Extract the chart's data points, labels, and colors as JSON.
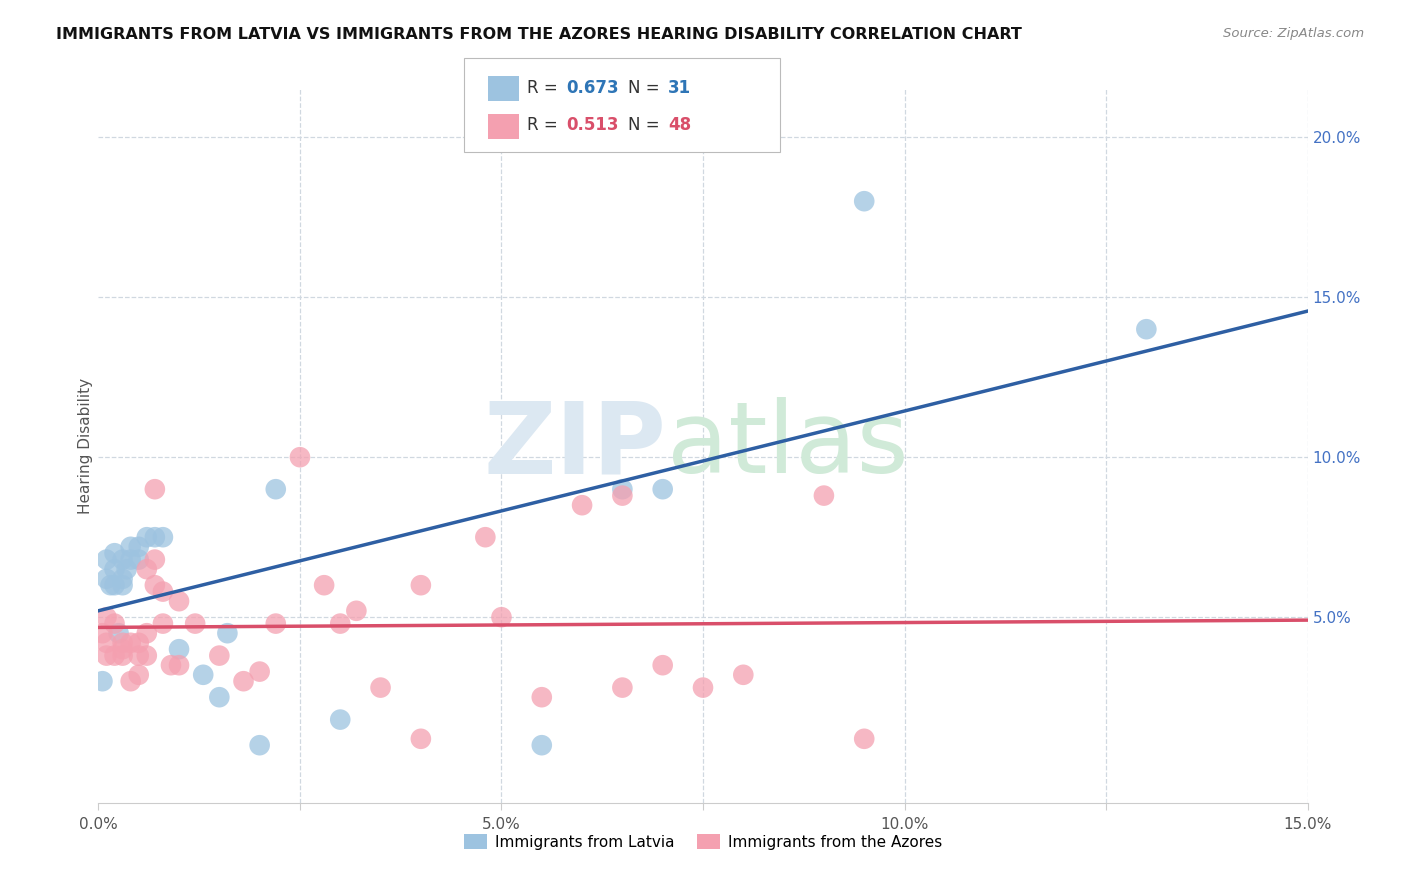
{
  "title": "IMMIGRANTS FROM LATVIA VS IMMIGRANTS FROM THE AZORES HEARING DISABILITY CORRELATION CHART",
  "source": "Source: ZipAtlas.com",
  "ylabel": "Hearing Disability",
  "xlim": [
    0.0,
    0.15
  ],
  "ylim": [
    -0.008,
    0.215
  ],
  "color_blue": "#9dc3e0",
  "color_pink": "#f4a0b0",
  "reg_blue": "#2e5fa3",
  "reg_pink": "#d94f6a",
  "text_blue": "#2e75b6",
  "text_pink": "#d94f6a",
  "grid_color": "#d0d8e0",
  "right_tick_color": "#4472c4",
  "blue_x": [
    0.0005,
    0.001,
    0.001,
    0.0015,
    0.002,
    0.002,
    0.002,
    0.0025,
    0.003,
    0.003,
    0.003,
    0.0035,
    0.004,
    0.004,
    0.005,
    0.005,
    0.006,
    0.007,
    0.008,
    0.01,
    0.013,
    0.015,
    0.016,
    0.02,
    0.022,
    0.03,
    0.055,
    0.065,
    0.07,
    0.095,
    0.13
  ],
  "blue_y": [
    0.03,
    0.062,
    0.068,
    0.06,
    0.06,
    0.065,
    0.07,
    0.045,
    0.06,
    0.062,
    0.068,
    0.065,
    0.068,
    0.072,
    0.068,
    0.072,
    0.075,
    0.075,
    0.075,
    0.04,
    0.032,
    0.025,
    0.045,
    0.01,
    0.09,
    0.018,
    0.01,
    0.09,
    0.09,
    0.18,
    0.14
  ],
  "pink_x": [
    0.0005,
    0.001,
    0.001,
    0.001,
    0.002,
    0.002,
    0.003,
    0.003,
    0.003,
    0.004,
    0.004,
    0.005,
    0.005,
    0.005,
    0.006,
    0.006,
    0.006,
    0.007,
    0.007,
    0.007,
    0.008,
    0.008,
    0.009,
    0.01,
    0.01,
    0.012,
    0.015,
    0.018,
    0.02,
    0.022,
    0.025,
    0.028,
    0.03,
    0.032,
    0.035,
    0.04,
    0.04,
    0.048,
    0.05,
    0.055,
    0.06,
    0.065,
    0.065,
    0.07,
    0.075,
    0.08,
    0.09,
    0.095
  ],
  "pink_y": [
    0.045,
    0.038,
    0.042,
    0.05,
    0.038,
    0.048,
    0.038,
    0.042,
    0.04,
    0.03,
    0.042,
    0.032,
    0.038,
    0.042,
    0.038,
    0.045,
    0.065,
    0.06,
    0.068,
    0.09,
    0.048,
    0.058,
    0.035,
    0.035,
    0.055,
    0.048,
    0.038,
    0.03,
    0.033,
    0.048,
    0.1,
    0.06,
    0.048,
    0.052,
    0.028,
    0.06,
    0.012,
    0.075,
    0.05,
    0.025,
    0.085,
    0.028,
    0.088,
    0.035,
    0.028,
    0.032,
    0.088,
    0.012
  ]
}
